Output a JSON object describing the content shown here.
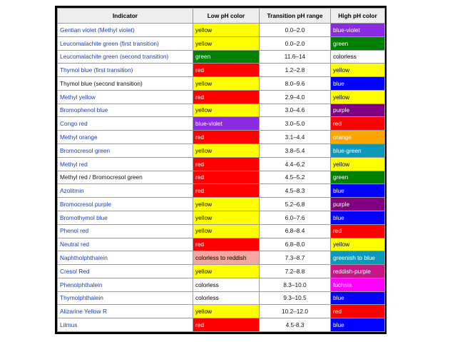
{
  "header": {
    "indicator": "Indicator",
    "low": "Low pH color",
    "range": "Transition pH range",
    "high": "High pH color"
  },
  "rows": [
    {
      "indicator": "Gentian violet (Methyl violet)",
      "link": true,
      "low": "yellow",
      "low_bg": "#ffff00",
      "low_fg": "#000000",
      "range": "0.0–2.0",
      "high": "blue-violet",
      "high_bg": "#8a2be2",
      "high_fg": "#ffffff"
    },
    {
      "indicator": "Leucomalachite green (first transition)",
      "link": true,
      "low": "yellow",
      "low_bg": "#ffff00",
      "low_fg": "#000000",
      "range": "0.0–2.0",
      "high": "green",
      "high_bg": "#008000",
      "high_fg": "#ffffff"
    },
    {
      "indicator": "Leucomalachite green (second transition)",
      "link": true,
      "low": "green",
      "low_bg": "#008000",
      "low_fg": "#ffffff",
      "range": "11.6–14",
      "high": "colorless",
      "high_bg": "#ffffff",
      "high_fg": "#000000"
    },
    {
      "indicator": "Thymol blue (first transition)",
      "link": true,
      "low": "red",
      "low_bg": "#ff0000",
      "low_fg": "#ffffff",
      "range": "1.2–2.8",
      "high": "yellow",
      "high_bg": "#ffff00",
      "high_fg": "#000000"
    },
    {
      "indicator": "Thymol blue (second transition)",
      "link": false,
      "low": "yellow",
      "low_bg": "#ffff00",
      "low_fg": "#000000",
      "range": "8.0–9.6",
      "high": "blue",
      "high_bg": "#0000ff",
      "high_fg": "#ffffff"
    },
    {
      "indicator": "Methyl yellow",
      "link": true,
      "low": "red",
      "low_bg": "#ff0000",
      "low_fg": "#ffffff",
      "range": "2.9–4.0",
      "high": "yellow",
      "high_bg": "#ffff00",
      "high_fg": "#000000"
    },
    {
      "indicator": "Bromophenol blue",
      "link": true,
      "low": "yellow",
      "low_bg": "#ffff00",
      "low_fg": "#000000",
      "range": "3.0–4.6",
      "high": "purple",
      "high_bg": "#800080",
      "high_fg": "#ffffff"
    },
    {
      "indicator": "Congo red",
      "link": true,
      "low": "blue-violet",
      "low_bg": "#8a2be2",
      "low_fg": "#ffffff",
      "range": "3.0–5.0",
      "high": "red",
      "high_bg": "#ff0000",
      "high_fg": "#ffffff"
    },
    {
      "indicator": "Methyl orange",
      "link": true,
      "low": "red",
      "low_bg": "#ff0000",
      "low_fg": "#ffffff",
      "range": "3.1–4.4",
      "high": "orange",
      "high_bg": "#ffa500",
      "high_fg": "#ffffff"
    },
    {
      "indicator": "Bromocresol green",
      "link": true,
      "low": "yellow",
      "low_bg": "#ffff00",
      "low_fg": "#000000",
      "range": "3.8–5.4",
      "high": "blue-green",
      "high_bg": "#0d98ba",
      "high_fg": "#ffffff"
    },
    {
      "indicator": "Methyl red",
      "link": true,
      "low": "red",
      "low_bg": "#ff0000",
      "low_fg": "#ffffff",
      "range": "4.4–6.2",
      "high": "yellow",
      "high_bg": "#ffff00",
      "high_fg": "#000000"
    },
    {
      "indicator": "Methyl red / Bromocresol green",
      "link": false,
      "low": "red",
      "low_bg": "#ff0000",
      "low_fg": "#ffffff",
      "range": "4.5–5.2",
      "high": "green",
      "high_bg": "#008000",
      "high_fg": "#ffffff"
    },
    {
      "indicator": "Azolitmin",
      "link": true,
      "low": "red",
      "low_bg": "#ff0000",
      "low_fg": "#ffffff",
      "range": "4.5–8.3",
      "high": "blue",
      "high_bg": "#0000ff",
      "high_fg": "#ffffff"
    },
    {
      "indicator": "Bromocresol purple",
      "link": true,
      "low": "yellow",
      "low_bg": "#ffff00",
      "low_fg": "#000000",
      "range": "5.2–6.8",
      "high": "purple",
      "high_bg": "#800080",
      "high_fg": "#ffffff"
    },
    {
      "indicator": "Bromothymol blue",
      "link": true,
      "low": "yellow",
      "low_bg": "#ffff00",
      "low_fg": "#000000",
      "range": "6.0–7.6",
      "high": "blue",
      "high_bg": "#0000ff",
      "high_fg": "#ffffff"
    },
    {
      "indicator": "Phenol red",
      "link": true,
      "low": "yellow",
      "low_bg": "#ffff00",
      "low_fg": "#000000",
      "range": "6.8–8.4",
      "high": "red",
      "high_bg": "#ff0000",
      "high_fg": "#ffffff"
    },
    {
      "indicator": "Neutral red",
      "link": true,
      "low": "red",
      "low_bg": "#ff0000",
      "low_fg": "#ffffff",
      "range": "6.8–8.0",
      "high": "yellow",
      "high_bg": "#ffff00",
      "high_fg": "#000000"
    },
    {
      "indicator": "Naphtholphthalein",
      "link": true,
      "low": "colorless to reddish",
      "low_bg": "#f4a7a0",
      "low_fg": "#000000",
      "range": "7.3–8.7",
      "high": "greenish to blue",
      "high_bg": "#0d98ba",
      "high_fg": "#ffffff"
    },
    {
      "indicator": "Cresol Red",
      "link": true,
      "low": "yellow",
      "low_bg": "#ffff00",
      "low_fg": "#000000",
      "range": "7.2–8.8",
      "high": "reddish-purple",
      "high_bg": "#c71585",
      "high_fg": "#ffffff"
    },
    {
      "indicator": "Phenolphthalein",
      "link": true,
      "low": "colorless",
      "low_bg": "#ffffff",
      "low_fg": "#000000",
      "range": "8.3–10.0",
      "high": "fuchsia",
      "high_bg": "#ff00ff",
      "high_fg": "#ffffff"
    },
    {
      "indicator": "Thymolphthalein",
      "link": true,
      "low": "colorless",
      "low_bg": "#ffffff",
      "low_fg": "#000000",
      "range": "9.3–10.5",
      "high": "blue",
      "high_bg": "#0000ff",
      "high_fg": "#ffffff"
    },
    {
      "indicator": "Alizarine Yellow R",
      "link": true,
      "low": "yellow",
      "low_bg": "#ffff00",
      "low_fg": "#000000",
      "range": "10.2–12.0",
      "high": "red",
      "high_bg": "#ff0000",
      "high_fg": "#ffffff"
    },
    {
      "indicator": "Litmus",
      "link": true,
      "low": "red",
      "low_bg": "#ff0000",
      "low_fg": "#ffffff",
      "range": "4.5-8.3",
      "high": "blue",
      "high_bg": "#0000ff",
      "high_fg": "#ffffff"
    }
  ]
}
